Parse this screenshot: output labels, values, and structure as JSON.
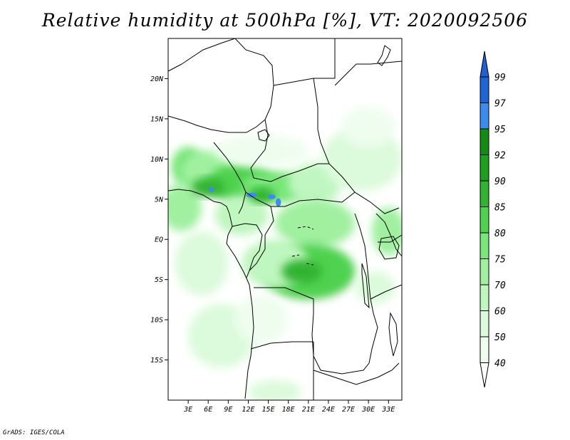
{
  "title": "Relative humidity at 500hPa [%], VT: 2020092506",
  "credit": "GrADS: IGES/COLA",
  "map": {
    "lon_range": [
      0,
      35
    ],
    "lat_range": [
      -20,
      25
    ],
    "lat_ticks": [
      {
        "value": 20,
        "label": "20N"
      },
      {
        "value": 15,
        "label": "15N"
      },
      {
        "value": 10,
        "label": "10N"
      },
      {
        "value": 5,
        "label": "5N"
      },
      {
        "value": 0,
        "label": "EQ"
      },
      {
        "value": -5,
        "label": "5S"
      },
      {
        "value": -10,
        "label": "10S"
      },
      {
        "value": -15,
        "label": "15S"
      }
    ],
    "lon_ticks": [
      {
        "value": 3,
        "label": "3E"
      },
      {
        "value": 6,
        "label": "6E"
      },
      {
        "value": 9,
        "label": "9E"
      },
      {
        "value": 12,
        "label": "12E"
      },
      {
        "value": 15,
        "label": "15E"
      },
      {
        "value": 18,
        "label": "18E"
      },
      {
        "value": 21,
        "label": "21E"
      },
      {
        "value": 24,
        "label": "24E"
      },
      {
        "value": 27,
        "label": "27E"
      },
      {
        "value": 30,
        "label": "30E"
      },
      {
        "value": 33,
        "label": "33E"
      }
    ],
    "humidity_blobs": [
      {
        "lon": 3,
        "lat": 9,
        "rlon": 2.5,
        "rlat": 2.5,
        "level": 80
      },
      {
        "lon": 6,
        "lat": 8.5,
        "rlon": 4,
        "rlat": 2.5,
        "level": 75
      },
      {
        "lon": 11,
        "lat": 7,
        "rlon": 5,
        "rlat": 2.5,
        "level": 85
      },
      {
        "lon": 16,
        "lat": 6.5,
        "rlon": 5,
        "rlat": 2,
        "level": 80
      },
      {
        "lon": 22,
        "lat": 7,
        "rlon": 4,
        "rlat": 2.5,
        "level": 70
      },
      {
        "lon": 29,
        "lat": 10,
        "rlon": 6,
        "rlat": 4,
        "level": 60
      },
      {
        "lon": 30,
        "lat": 14,
        "rlon": 4,
        "rlat": 2.5,
        "level": 50
      },
      {
        "lon": 14,
        "lat": 11,
        "rlon": 7,
        "rlat": 2,
        "level": 50
      },
      {
        "lon": 2,
        "lat": 4,
        "rlon": 3,
        "rlat": 3,
        "level": 75
      },
      {
        "lon": 11,
        "lat": 3,
        "rlon": 4,
        "rlat": 2.5,
        "level": 70
      },
      {
        "lon": 22,
        "lat": 2,
        "rlon": 6,
        "rlat": 3,
        "level": 75
      },
      {
        "lon": 21,
        "lat": -4,
        "rlon": 7,
        "rlat": 3.5,
        "level": 85
      },
      {
        "lon": 16,
        "lat": -3,
        "rlon": 5,
        "rlat": 3,
        "level": 70
      },
      {
        "lon": 5,
        "lat": -3,
        "rlon": 4,
        "rlat": 4,
        "level": 60
      },
      {
        "lon": 8,
        "lat": -12,
        "rlon": 5,
        "rlat": 4,
        "level": 60
      },
      {
        "lon": 14,
        "lat": -10,
        "rlon": 4,
        "rlat": 3,
        "level": 50
      },
      {
        "lon": 16,
        "lat": -19,
        "rlon": 4,
        "rlat": 1.5,
        "level": 60
      },
      {
        "lon": 33,
        "lat": 1,
        "rlon": 2.5,
        "rlat": 3,
        "level": 75
      },
      {
        "lon": 31,
        "lat": -6,
        "rlon": 3,
        "rlat": 2,
        "level": 60
      },
      {
        "lon": 6,
        "lat": 6.5,
        "rlon": 2.5,
        "rlat": 1.2,
        "level": 90
      },
      {
        "lon": 14,
        "lat": 5.5,
        "rlon": 2,
        "rlat": 1,
        "level": 90
      },
      {
        "lon": 20,
        "lat": -4,
        "rlon": 3,
        "rlat": 1.5,
        "level": 90
      },
      {
        "lon": 6.5,
        "lat": 6.2,
        "rlon": 0.4,
        "rlat": 0.3,
        "level": 97
      },
      {
        "lon": 12.5,
        "lat": 5.5,
        "rlon": 0.8,
        "rlat": 0.3,
        "level": 97
      },
      {
        "lon": 15.5,
        "lat": 5.3,
        "rlon": 0.6,
        "rlat": 0.3,
        "level": 97
      },
      {
        "lon": 16.5,
        "lat": 4.6,
        "rlon": 0.4,
        "rlat": 0.5,
        "level": 97
      }
    ]
  },
  "colorbar": {
    "levels": [
      {
        "label": "99",
        "color": "#1e64d2"
      },
      {
        "label": "97",
        "color": "#3c8cf0"
      },
      {
        "label": "95",
        "color": "#148c14"
      },
      {
        "label": "92",
        "color": "#1ea01e"
      },
      {
        "label": "90",
        "color": "#32b432"
      },
      {
        "label": "85",
        "color": "#50d250"
      },
      {
        "label": "80",
        "color": "#78e678"
      },
      {
        "label": "75",
        "color": "#a0f0a0"
      },
      {
        "label": "70",
        "color": "#c0f6c0"
      },
      {
        "label": "60",
        "color": "#dcfadc"
      },
      {
        "label": "50",
        "color": "#effdef"
      },
      {
        "label": "40",
        "color": "#ffffff"
      }
    ],
    "top_color": "#2060d0",
    "bottom_color": "#ffffff"
  }
}
